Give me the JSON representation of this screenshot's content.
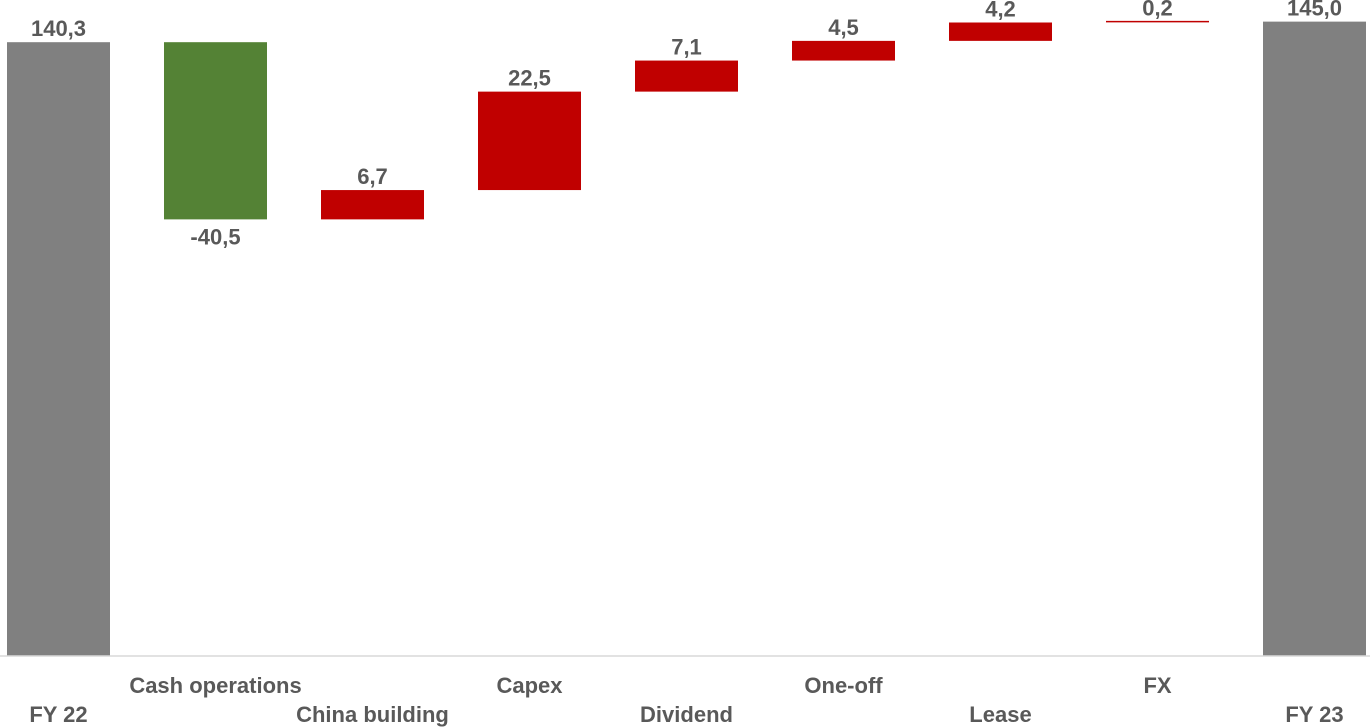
{
  "chart_data": {
    "type": "waterfall",
    "title": "",
    "xlabel": "",
    "ylabel": "",
    "ylim": [
      0,
      150
    ],
    "grid": false,
    "legend": "none",
    "categories": [
      "FY 22",
      "Cash operations",
      "China building",
      "Capex",
      "Dividend",
      "One-off",
      "Lease",
      "FX",
      "FY 23"
    ],
    "label_row": [
      "bottom",
      "top",
      "bottom",
      "top",
      "bottom",
      "top",
      "bottom",
      "top",
      "bottom"
    ],
    "values": [
      140.3,
      -40.5,
      6.7,
      22.5,
      7.1,
      4.5,
      4.2,
      0.2,
      145.0
    ],
    "kinds": [
      "total",
      "decrease",
      "increase",
      "increase",
      "increase",
      "increase",
      "increase",
      "increase",
      "total"
    ],
    "value_labels": [
      "140,3",
      "-40,5",
      "6,7",
      "22,5",
      "7,1",
      "4,5",
      "4,2",
      "0,2",
      "145,0"
    ],
    "colors": {
      "total": "#808080",
      "decrease": "#548235",
      "increase": "#c00000",
      "label": "#595959",
      "axis": "#d9d9d9"
    }
  }
}
